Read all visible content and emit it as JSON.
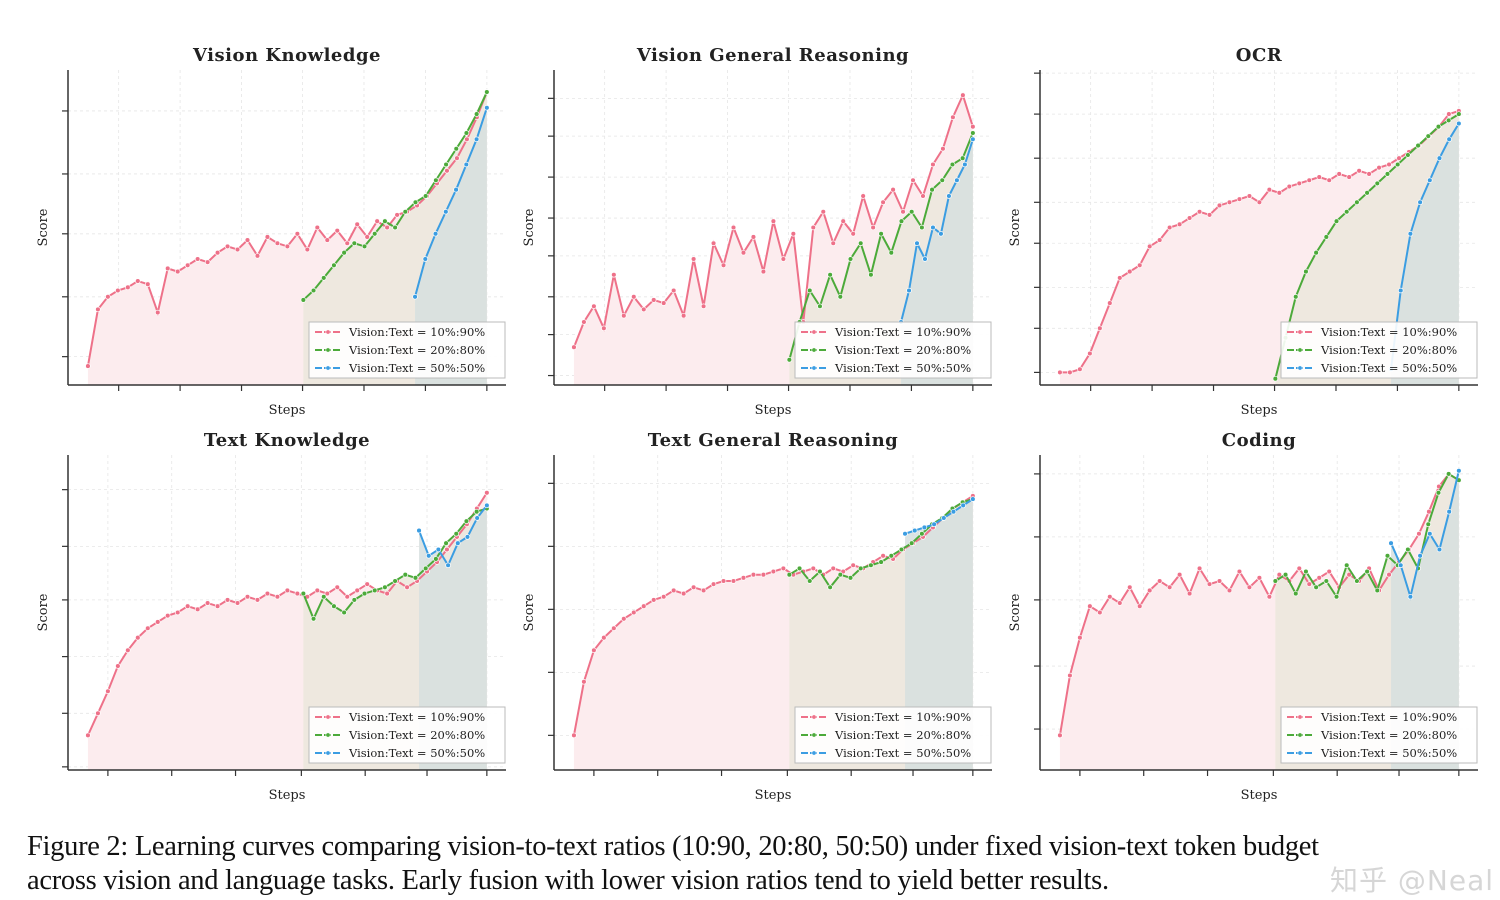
{
  "legend_labels": [
    "Vision:Text = 10%:90%",
    "Vision:Text = 20%:80%",
    "Vision:Text = 50%:50%"
  ],
  "colors": {
    "pink": "#ee7189",
    "green": "#4caa3a",
    "blue": "#3b9de2",
    "fill_pink": "#fcecee",
    "fill_green": "#ebe8dc",
    "fill_blue": "#d6dfdf"
  },
  "caption": {
    "line1": "Figure 2: Learning curves comparing vision-to-text ratios (10:90, 20:80, 50:50) under fixed vision-text token budget",
    "line2": "across vision and language tasks. Early fusion with lower vision ratios tend to yield better results."
  },
  "watermark": "知乎 @Neal",
  "chart_data": [
    {
      "type": "line",
      "title": "Vision Knowledge",
      "xlabel": "Steps",
      "ylabel": "Score",
      "xlim": [
        -5,
        104.8
      ],
      "ylim": [
        0,
        100
      ],
      "grid": true,
      "legend": "bottom-right",
      "xticks": [
        7.7,
        23.1,
        38.5,
        53.8,
        69.2,
        84.6,
        100
      ],
      "yticks": [
        9,
        28,
        48,
        67,
        87
      ],
      "series": [
        {
          "name": "Vision:Text = 10%:90%",
          "x_range": [
            0,
            100
          ],
          "values": [
            6,
            24,
            28,
            30,
            31,
            33,
            32,
            23,
            37,
            36,
            38,
            40,
            39,
            42,
            44,
            43,
            46,
            41,
            47,
            45,
            44,
            48,
            43,
            50,
            46,
            49,
            45,
            51,
            47,
            52,
            50,
            54,
            55,
            57,
            60,
            64,
            68,
            72,
            78,
            85,
            93
          ]
        },
        {
          "name": "Vision:Text = 20%:80%",
          "x_range": [
            54,
            100
          ],
          "values": [
            27,
            30,
            34,
            38,
            42,
            45,
            44,
            48,
            52,
            50,
            55,
            58,
            60,
            65,
            70,
            75,
            80,
            86,
            93
          ]
        },
        {
          "name": "Vision:Text = 50%:50%",
          "x_range": [
            82,
            100
          ],
          "values": [
            28,
            40,
            48,
            55,
            62,
            70,
            78,
            88
          ]
        }
      ]
    },
    {
      "type": "line",
      "title": "Vision General Reasoning",
      "xlabel": "Steps",
      "ylabel": "Score",
      "xlim": [
        -5,
        104.8
      ],
      "ylim": [
        0,
        100
      ],
      "grid": true,
      "legend": "bottom-right",
      "xticks": [
        7.7,
        23.1,
        38.5,
        53.8,
        69.2,
        84.6,
        100
      ],
      "yticks": [
        3,
        16,
        28,
        41,
        53,
        66,
        79,
        91
      ],
      "series": [
        {
          "name": "Vision:Text = 10%:90%",
          "x_range": [
            0,
            100
          ],
          "values": [
            12,
            20,
            25,
            18,
            35,
            22,
            28,
            24,
            27,
            26,
            30,
            22,
            40,
            25,
            45,
            38,
            50,
            42,
            47,
            36,
            52,
            40,
            48,
            20,
            50,
            55,
            45,
            52,
            48,
            60,
            50,
            58,
            62,
            55,
            65,
            60,
            70,
            75,
            85,
            92,
            82
          ]
        },
        {
          "name": "Vision:Text = 20%:80%",
          "x_range": [
            54,
            100
          ],
          "values": [
            8,
            20,
            30,
            25,
            35,
            28,
            40,
            45,
            35,
            48,
            42,
            52,
            55,
            50,
            62,
            65,
            70,
            72,
            80
          ]
        },
        {
          "name": "Vision:Text = 50%:50%",
          "x_range": [
            82,
            100
          ],
          "values": [
            20,
            30,
            45,
            40,
            50,
            48,
            60,
            65,
            70,
            78
          ]
        }
      ]
    },
    {
      "type": "line",
      "title": "OCR",
      "xlabel": "Steps",
      "ylabel": "Score",
      "xlim": [
        -5,
        104.8
      ],
      "ylim": [
        0,
        100
      ],
      "grid": true,
      "legend": "bottom-right",
      "xticks": [
        7.7,
        23.1,
        38.5,
        53.8,
        69.2,
        84.6,
        100
      ],
      "yticks": [
        4,
        18,
        31,
        45,
        58,
        72,
        86,
        99
      ],
      "series": [
        {
          "name": "Vision:Text = 10%:90%",
          "x_range": [
            0,
            100
          ],
          "values": [
            4,
            4,
            5,
            10,
            18,
            26,
            34,
            36,
            38,
            44,
            46,
            50,
            51,
            53,
            55,
            54,
            57,
            58,
            59,
            60,
            58,
            62,
            61,
            63,
            64,
            65,
            66,
            65,
            67,
            66,
            68,
            67,
            69,
            70,
            72,
            74,
            76,
            79,
            82,
            86,
            87
          ]
        },
        {
          "name": "Vision:Text = 20%:80%",
          "x_range": [
            54,
            100
          ],
          "values": [
            2,
            15,
            28,
            36,
            42,
            47,
            52,
            55,
            58,
            61,
            64,
            67,
            70,
            73,
            76,
            79,
            82,
            84,
            86
          ]
        },
        {
          "name": "Vision:Text = 50%:50%",
          "x_range": [
            83,
            100
          ],
          "values": [
            5,
            30,
            48,
            58,
            65,
            72,
            78,
            83
          ]
        }
      ]
    },
    {
      "type": "line",
      "title": "Text Knowledge",
      "xlabel": "Steps",
      "ylabel": "Score",
      "xlim": [
        -5,
        104.8
      ],
      "ylim": [
        0,
        100
      ],
      "grid": true,
      "legend": "bottom-right",
      "xticks": [
        5,
        21,
        37,
        53.5,
        69.5,
        85,
        100
      ],
      "yticks": [
        1,
        18,
        36,
        54,
        71,
        89
      ],
      "series": [
        {
          "name": "Vision:Text = 10%:90%",
          "x_range": [
            0,
            100
          ],
          "values": [
            11,
            18,
            25,
            33,
            38,
            42,
            45,
            47,
            49,
            50,
            52,
            51,
            53,
            52,
            54,
            53,
            55,
            54,
            56,
            55,
            57,
            56,
            55,
            57,
            56,
            58,
            55,
            57,
            59,
            57,
            56,
            60,
            58,
            60,
            63,
            66,
            70,
            74,
            78,
            83,
            88
          ]
        },
        {
          "name": "Vision:Text = 20%:80%",
          "x_range": [
            54,
            100
          ],
          "values": [
            56,
            48,
            55,
            52,
            50,
            54,
            56,
            57,
            58,
            60,
            62,
            61,
            64,
            67,
            72,
            75,
            79,
            82,
            83
          ]
        },
        {
          "name": "Vision:Text = 50%:50%",
          "x_range": [
            83,
            100
          ],
          "values": [
            76,
            68,
            70,
            65,
            72,
            74,
            80,
            84
          ]
        }
      ]
    },
    {
      "type": "line",
      "title": "Text General Reasoning",
      "xlabel": "Steps",
      "ylabel": "Score",
      "xlim": [
        -5,
        104.8
      ],
      "ylim": [
        0,
        100
      ],
      "grid": true,
      "legend": "bottom-right",
      "xticks": [
        5,
        21,
        37,
        53.5,
        69.5,
        85,
        100
      ],
      "yticks": [
        11,
        31,
        51,
        71,
        91
      ],
      "series": [
        {
          "name": "Vision:Text = 10%:90%",
          "x_range": [
            0,
            100
          ],
          "values": [
            11,
            28,
            38,
            42,
            45,
            48,
            50,
            52,
            54,
            55,
            57,
            56,
            58,
            57,
            59,
            60,
            60,
            61,
            62,
            62,
            63,
            64,
            62,
            63,
            64,
            62,
            64,
            63,
            65,
            64,
            66,
            68,
            67,
            70,
            72,
            74,
            77,
            80,
            83,
            85,
            87
          ]
        },
        {
          "name": "Vision:Text = 20%:80%",
          "x_range": [
            54,
            100
          ],
          "values": [
            62,
            64,
            60,
            63,
            58,
            62,
            61,
            64,
            65,
            66,
            68,
            70,
            72,
            75,
            78,
            80,
            83,
            85,
            86
          ]
        },
        {
          "name": "Vision:Text = 50%:50%",
          "x_range": [
            83,
            100
          ],
          "values": [
            75,
            76,
            77,
            78,
            80,
            82,
            84,
            86
          ]
        }
      ]
    },
    {
      "type": "line",
      "title": "Coding",
      "xlabel": "Steps",
      "ylabel": "Score",
      "xlim": [
        -5,
        104.8
      ],
      "ylim": [
        0,
        100
      ],
      "grid": true,
      "legend": "bottom-right",
      "xticks": [
        5,
        21,
        37,
        53.5,
        69.5,
        85,
        100
      ],
      "yticks": [
        13,
        33,
        54,
        74,
        94
      ],
      "series": [
        {
          "name": "Vision:Text = 10%:90%",
          "x_range": [
            0,
            100
          ],
          "values": [
            11,
            30,
            42,
            52,
            50,
            55,
            53,
            58,
            52,
            57,
            60,
            58,
            62,
            56,
            64,
            59,
            60,
            57,
            63,
            58,
            61,
            55,
            62,
            60,
            64,
            59,
            61,
            63,
            58,
            62,
            60,
            64,
            57,
            62,
            66,
            70,
            75,
            82,
            90,
            94,
            92
          ]
        },
        {
          "name": "Vision:Text = 20%:80%",
          "x_range": [
            54,
            100
          ],
          "values": [
            60,
            62,
            56,
            63,
            58,
            60,
            55,
            65,
            60,
            63,
            57,
            68,
            65,
            70,
            64,
            78,
            88,
            94,
            92
          ]
        },
        {
          "name": "Vision:Text = 50%:50%",
          "x_range": [
            83,
            100
          ],
          "values": [
            72,
            65,
            55,
            68,
            75,
            70,
            82,
            95
          ]
        }
      ]
    }
  ]
}
